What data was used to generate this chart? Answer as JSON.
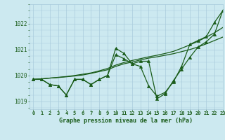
{
  "title": "Graphe pression niveau de la mer (hPa)",
  "xlim": [
    -0.5,
    23
  ],
  "ylim": [
    1018.7,
    1022.75
  ],
  "yticks": [
    1019,
    1020,
    1021,
    1022
  ],
  "xtick_labels": [
    "0",
    "1",
    "2",
    "3",
    "4",
    "5",
    "6",
    "7",
    "8",
    "9",
    "10",
    "11",
    "12",
    "13",
    "14",
    "15",
    "16",
    "17",
    "18",
    "19",
    "20",
    "21",
    "22",
    "23"
  ],
  "xtick_positions": [
    0,
    1,
    2,
    3,
    4,
    5,
    6,
    7,
    8,
    9,
    10,
    11,
    12,
    13,
    14,
    15,
    16,
    17,
    18,
    19,
    20,
    21,
    22,
    23
  ],
  "bg_color": "#cce9f0",
  "grid_color": "#aaccdd",
  "line_color": "#1a5c1a",
  "line1_y": [
    1019.85,
    1019.85,
    1019.65,
    1019.6,
    1019.25,
    1019.85,
    1019.85,
    1019.65,
    1019.85,
    1020.0,
    1021.05,
    1020.85,
    1020.45,
    1020.35,
    1019.6,
    1019.2,
    1019.35,
    1019.75,
    1020.35,
    1021.2,
    1021.35,
    1021.5,
    1022.05,
    1022.5
  ],
  "line2_y": [
    1019.85,
    1019.85,
    1019.65,
    1019.6,
    1019.25,
    1019.85,
    1019.85,
    1019.65,
    1019.85,
    1020.0,
    1020.8,
    1020.65,
    1020.45,
    1020.55,
    1020.55,
    1019.1,
    1019.3,
    1019.8,
    1020.25,
    1020.7,
    1021.1,
    1021.3,
    1021.6,
    1022.5
  ],
  "line3_y": [
    1019.85,
    1019.87,
    1019.9,
    1019.92,
    1019.95,
    1019.98,
    1020.02,
    1020.08,
    1020.15,
    1020.22,
    1020.35,
    1020.45,
    1020.52,
    1020.6,
    1020.67,
    1020.72,
    1020.78,
    1020.84,
    1020.92,
    1021.0,
    1021.1,
    1021.22,
    1021.35,
    1021.48
  ],
  "line4_y": [
    1019.85,
    1019.87,
    1019.9,
    1019.93,
    1019.96,
    1020.0,
    1020.05,
    1020.1,
    1020.18,
    1020.27,
    1020.4,
    1020.5,
    1020.58,
    1020.65,
    1020.72,
    1020.78,
    1020.85,
    1020.93,
    1021.05,
    1021.18,
    1021.32,
    1021.48,
    1021.65,
    1021.85
  ]
}
